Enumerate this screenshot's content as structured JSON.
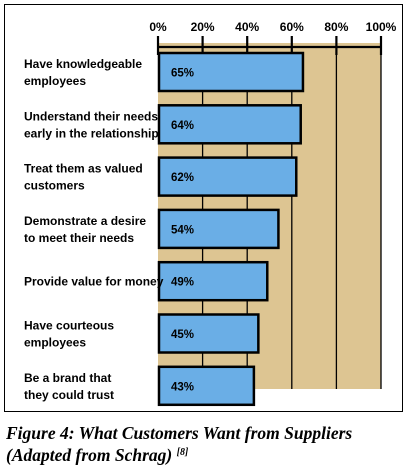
{
  "chart_data": {
    "type": "bar",
    "orientation": "horizontal",
    "categories": [
      [
        "Have knowledgeable",
        "employees"
      ],
      [
        "Understand their needs",
        "early in the relationship"
      ],
      [
        "Treat them as valued",
        "customers"
      ],
      [
        "Demonstrate a desire",
        "to meet their needs"
      ],
      [
        "Provide value for money"
      ],
      [
        "Have courteous",
        "employees"
      ],
      [
        "Be a brand that",
        "they could trust"
      ]
    ],
    "values": [
      65,
      64,
      62,
      54,
      49,
      45,
      43
    ],
    "value_labels": [
      "65%",
      "64%",
      "62%",
      "54%",
      "49%",
      "45%",
      "43%"
    ],
    "x_ticks": [
      0,
      20,
      40,
      60,
      80,
      100
    ],
    "x_tick_labels": [
      "0%",
      "20%",
      "40%",
      "60%",
      "80%",
      "100%"
    ],
    "xlim": [
      0,
      100
    ],
    "axis_position": "top",
    "bar_color": "#6aaee6",
    "background_color": "#ddc592",
    "grid": true
  },
  "caption": {
    "text": "Figure 4: What Customers Want from Suppliers (Adapted from Schrag)",
    "ref": "[8]"
  }
}
